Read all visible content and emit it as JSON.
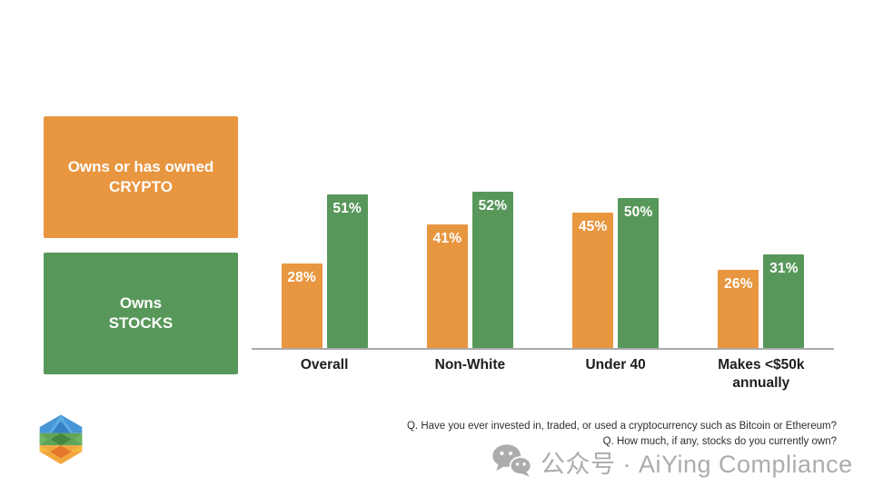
{
  "legend": {
    "crypto": {
      "line1": "Owns or has owned",
      "line2": "CRYPTO"
    },
    "stocks": {
      "line1": "Owns",
      "line2": "STOCKS"
    }
  },
  "chart_data": {
    "type": "bar",
    "categories": [
      "Overall",
      "Non-White",
      "Under 40",
      "Makes <$50k annually"
    ],
    "series": [
      {
        "key": "crypto",
        "name": "Owns or has owned CRYPTO",
        "color": "#E89640",
        "values": [
          28,
          41,
          45,
          26
        ]
      },
      {
        "key": "stocks",
        "name": "Owns STOCKS",
        "color": "#58975A",
        "values": [
          51,
          52,
          50,
          31
        ]
      }
    ],
    "value_suffix": "%",
    "value_labels": "inside-top",
    "ylim": [
      0,
      55
    ],
    "grid": false,
    "axis_line_color": "#ABABAB",
    "legend_position": "left"
  },
  "footnote": {
    "line1": "Q. Have you ever invested in, traded, or used a cryptocurrency such as Bitcoin or Ethereum?",
    "line2": "Q. How much, if any, stocks do you currently own?"
  },
  "watermark": {
    "text": "公众号 · AiYing Compliance",
    "icon": "wechat-icon"
  },
  "colors": {
    "crypto_orange": "#E89640",
    "stocks_green": "#58975A",
    "watermark_gray": "#ACACAC"
  }
}
